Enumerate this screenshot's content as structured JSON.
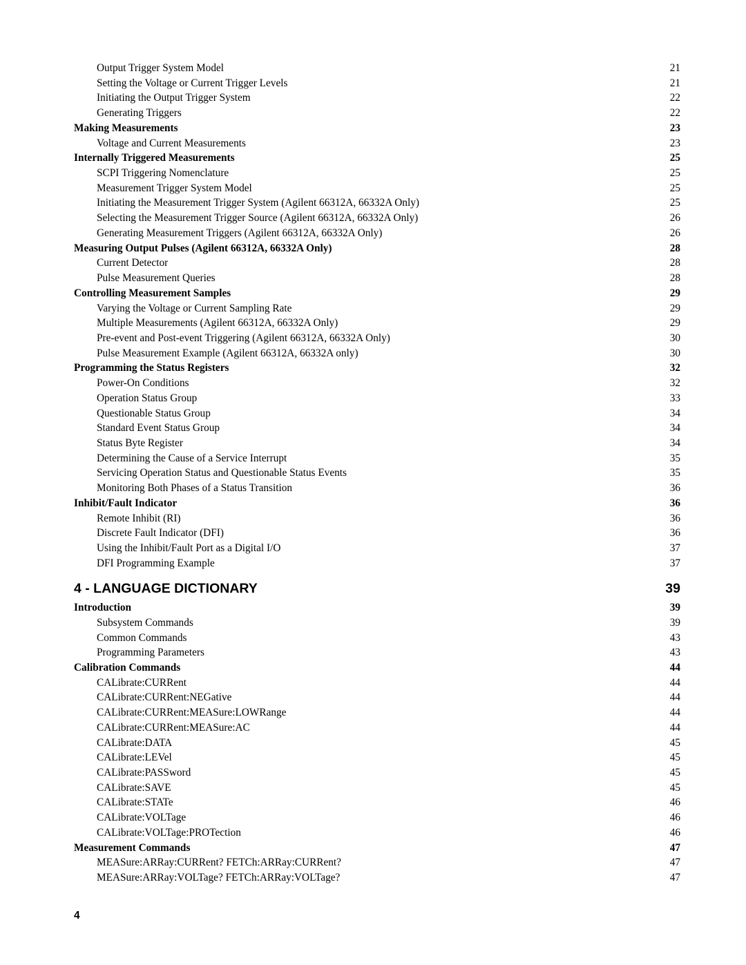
{
  "page_number": "4",
  "entries": [
    {
      "label": "Output Trigger System Model",
      "page": "21",
      "indent": 1,
      "bold": false
    },
    {
      "label": "Setting the Voltage or Current Trigger Levels",
      "page": "21",
      "indent": 1,
      "bold": false
    },
    {
      "label": "Initiating the Output Trigger System",
      "page": "22",
      "indent": 1,
      "bold": false
    },
    {
      "label": "Generating Triggers",
      "page": "22",
      "indent": 1,
      "bold": false
    },
    {
      "label": "Making Measurements",
      "page": "23",
      "indent": 0,
      "bold": true
    },
    {
      "label": "Voltage and Current Measurements",
      "page": "23",
      "indent": 1,
      "bold": false
    },
    {
      "label": "Internally Triggered Measurements",
      "page": "25",
      "indent": 0,
      "bold": true
    },
    {
      "label": "SCPI Triggering Nomenclature",
      "page": "25",
      "indent": 1,
      "bold": false
    },
    {
      "label": "Measurement Trigger System Model",
      "page": "25",
      "indent": 1,
      "bold": false
    },
    {
      "label": "Initiating the Measurement Trigger System (Agilent 66312A, 66332A Only)",
      "page": "25",
      "indent": 1,
      "bold": false
    },
    {
      "label": "Selecting the Measurement Trigger Source (Agilent 66312A, 66332A Only)",
      "page": "26",
      "indent": 1,
      "bold": false
    },
    {
      "label": "Generating Measurement Triggers (Agilent 66312A, 66332A Only)",
      "page": "26",
      "indent": 1,
      "bold": false
    },
    {
      "label": "Measuring Output Pulses (Agilent 66312A, 66332A Only)",
      "page": "28",
      "indent": 0,
      "bold": true
    },
    {
      "label": "Current Detector",
      "page": "28",
      "indent": 1,
      "bold": false
    },
    {
      "label": "Pulse Measurement Queries",
      "page": "28",
      "indent": 1,
      "bold": false
    },
    {
      "label": "Controlling Measurement Samples",
      "page": "29",
      "indent": 0,
      "bold": true
    },
    {
      "label": "Varying the Voltage or Current Sampling Rate",
      "page": "29",
      "indent": 1,
      "bold": false
    },
    {
      "label": "Multiple Measurements (Agilent 66312A, 66332A Only)",
      "page": "29",
      "indent": 1,
      "bold": false
    },
    {
      "label": "Pre-event and Post-event Triggering (Agilent 66312A, 66332A Only)",
      "page": "30",
      "indent": 1,
      "bold": false
    },
    {
      "label": "Pulse Measurement Example (Agilent 66312A, 66332A only)",
      "page": "30",
      "indent": 1,
      "bold": false
    },
    {
      "label": "Programming the Status Registers",
      "page": "32",
      "indent": 0,
      "bold": true
    },
    {
      "label": "Power-On Conditions",
      "page": "32",
      "indent": 1,
      "bold": false
    },
    {
      "label": "Operation Status Group",
      "page": "33",
      "indent": 1,
      "bold": false
    },
    {
      "label": "Questionable Status Group",
      "page": "34",
      "indent": 1,
      "bold": false
    },
    {
      "label": "Standard Event Status Group",
      "page": "34",
      "indent": 1,
      "bold": false
    },
    {
      "label": "Status Byte Register",
      "page": "34",
      "indent": 1,
      "bold": false
    },
    {
      "label": "Determining the Cause of a Service Interrupt",
      "page": "35",
      "indent": 1,
      "bold": false
    },
    {
      "label": "Servicing Operation Status and Questionable Status Events",
      "page": "35",
      "indent": 1,
      "bold": false
    },
    {
      "label": "Monitoring Both Phases of a Status Transition",
      "page": "36",
      "indent": 1,
      "bold": false
    },
    {
      "label": "Inhibit/Fault Indicator",
      "page": "36",
      "indent": 0,
      "bold": true
    },
    {
      "label": "Remote Inhibit (RI)",
      "page": "36",
      "indent": 1,
      "bold": false
    },
    {
      "label": "Discrete Fault Indicator (DFI)",
      "page": "36",
      "indent": 1,
      "bold": false
    },
    {
      "label": "Using the Inhibit/Fault Port as a Digital I/O",
      "page": "37",
      "indent": 1,
      "bold": false
    },
    {
      "label": "DFI Programming Example",
      "page": "37",
      "indent": 1,
      "bold": false
    }
  ],
  "section4_heading": {
    "label": "4 - LANGUAGE DICTIONARY",
    "page": "39"
  },
  "section4_entries": [
    {
      "label": "Introduction",
      "page": "39",
      "indent": 0,
      "bold": true
    },
    {
      "label": "Subsystem Commands",
      "page": "39",
      "indent": 1,
      "bold": false
    },
    {
      "label": "Common Commands",
      "page": "43",
      "indent": 1,
      "bold": false
    },
    {
      "label": "Programming Parameters",
      "page": "43",
      "indent": 1,
      "bold": false
    },
    {
      "label": "Calibration Commands",
      "page": "44",
      "indent": 0,
      "bold": true
    },
    {
      "label": "CALibrate:CURRent",
      "page": "44",
      "indent": 1,
      "bold": false
    },
    {
      "label": "CALibrate:CURRent:NEGative",
      "page": "44",
      "indent": 1,
      "bold": false
    },
    {
      "label": "CALibrate:CURRent:MEASure:LOWRange",
      "page": "44",
      "indent": 1,
      "bold": false
    },
    {
      "label": "CALibrate:CURRent:MEASure:AC",
      "page": "44",
      "indent": 1,
      "bold": false
    },
    {
      "label": "CALibrate:DATA",
      "page": "45",
      "indent": 1,
      "bold": false
    },
    {
      "label": "CALibrate:LEVel",
      "page": "45",
      "indent": 1,
      "bold": false
    },
    {
      "label": "CALibrate:PASSword",
      "page": "45",
      "indent": 1,
      "bold": false
    },
    {
      "label": "CALibrate:SAVE",
      "page": "45",
      "indent": 1,
      "bold": false
    },
    {
      "label": "CALibrate:STATe",
      "page": "46",
      "indent": 1,
      "bold": false
    },
    {
      "label": "CALibrate:VOLTage",
      "page": "46",
      "indent": 1,
      "bold": false
    },
    {
      "label": "CALibrate:VOLTage:PROTection",
      "page": "46",
      "indent": 1,
      "bold": false
    },
    {
      "label": "Measurement Commands",
      "page": "47",
      "indent": 0,
      "bold": true
    },
    {
      "label": "MEASure:ARRay:CURRent? FETCh:ARRay:CURRent?",
      "page": "47",
      "indent": 1,
      "bold": false
    },
    {
      "label": "MEASure:ARRay:VOLTage? FETCh:ARRay:VOLTage?",
      "page": "47",
      "indent": 1,
      "bold": false
    }
  ]
}
